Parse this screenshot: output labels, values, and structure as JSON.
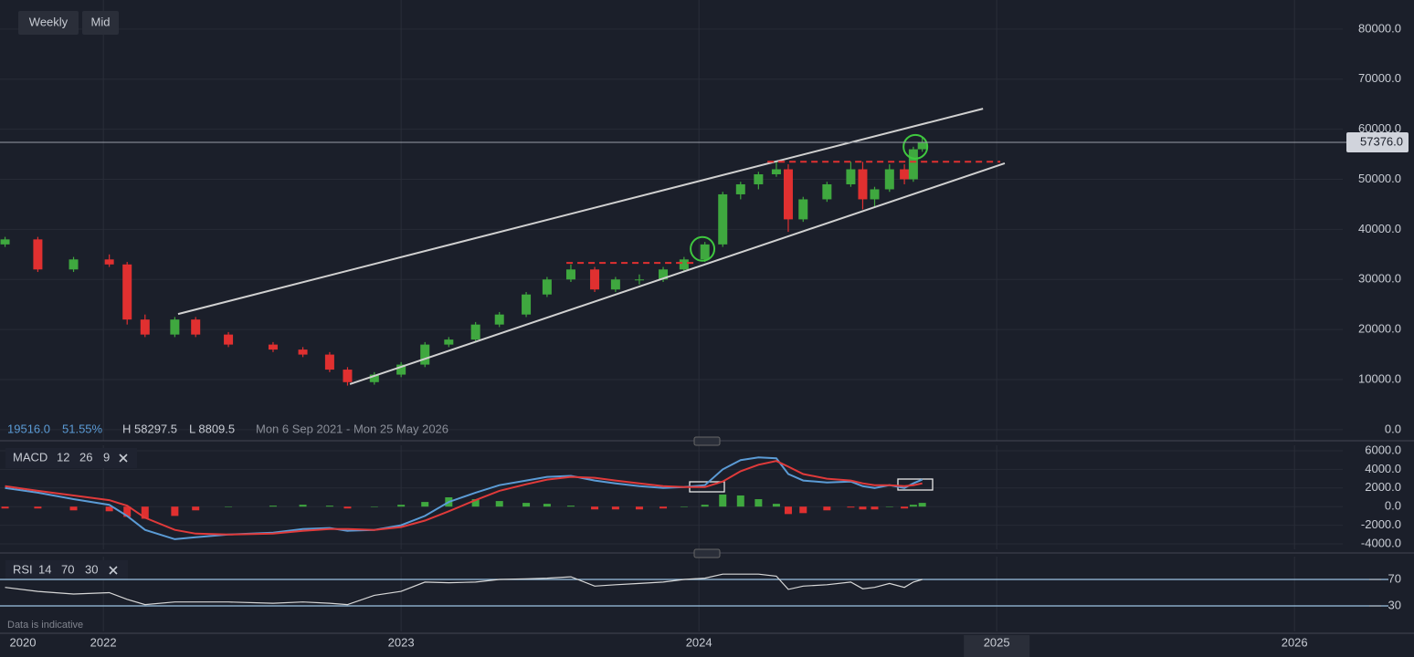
{
  "toolbar": {
    "interval": "Weekly",
    "price_type": "Mid"
  },
  "chart_data": [
    {
      "type": "candlestick",
      "up_color": "#3fa83f",
      "down_color": "#e03030",
      "x": [
        2021.67,
        2021.78,
        2021.9,
        2022.02,
        2022.08,
        2022.14,
        2022.24,
        2022.31,
        2022.42,
        2022.57,
        2022.67,
        2022.76,
        2022.82,
        2022.91,
        2023.0,
        2023.08,
        2023.16,
        2023.25,
        2023.33,
        2023.42,
        2023.49,
        2023.57,
        2023.65,
        2023.72,
        2023.8,
        2023.88,
        2023.95,
        2024.02,
        2024.08,
        2024.14,
        2024.2,
        2024.26,
        2024.3,
        2024.35,
        2024.43,
        2024.51,
        2024.55,
        2024.59,
        2024.64,
        2024.69,
        2024.72,
        2024.75
      ],
      "open": [
        37000,
        38000,
        32000,
        34000,
        33000,
        22000,
        19000,
        22000,
        19000,
        17000,
        16000,
        15000,
        12000,
        9500,
        11000,
        13000,
        17000,
        18000,
        21000,
        23000,
        27000,
        30000,
        32000,
        28000,
        30000,
        30000,
        32000,
        34000,
        37000,
        47000,
        49000,
        51000,
        52000,
        42000,
        46000,
        49000,
        52000,
        46000,
        48000,
        52000,
        50000,
        56000
      ],
      "high": [
        38500,
        38500,
        34500,
        35000,
        33500,
        23000,
        22500,
        22500,
        19500,
        17500,
        16500,
        15500,
        12500,
        11500,
        13500,
        17500,
        18500,
        21500,
        23500,
        27500,
        30500,
        33000,
        32500,
        30500,
        31000,
        32500,
        34500,
        37500,
        47500,
        49500,
        51500,
        53500,
        53000,
        46500,
        49500,
        53500,
        53500,
        48500,
        53000,
        53000,
        56500,
        58297.5
      ],
      "low": [
        36500,
        31500,
        31500,
        32500,
        21000,
        18500,
        18500,
        18500,
        16500,
        15500,
        14500,
        11500,
        8809.5,
        9000,
        10500,
        12500,
        16500,
        17500,
        20500,
        22500,
        26500,
        29500,
        27500,
        27500,
        29000,
        29500,
        31500,
        33500,
        36500,
        46000,
        48000,
        50500,
        39500,
        41500,
        45500,
        48500,
        44000,
        44500,
        47500,
        49000,
        49500,
        55500
      ],
      "close": [
        38000,
        32000,
        34000,
        33000,
        22000,
        19000,
        22000,
        19000,
        17000,
        16000,
        15000,
        12000,
        9500,
        11000,
        13000,
        17000,
        18000,
        21000,
        23000,
        27000,
        30000,
        32000,
        28000,
        30000,
        30000,
        32000,
        34000,
        37000,
        47000,
        49000,
        51000,
        52000,
        42000,
        46000,
        49000,
        52000,
        46000,
        48000,
        52000,
        50000,
        56000,
        57376
      ],
      "xlim": [
        2021.653,
        2026.162
      ],
      "xticks": [
        2022,
        2023,
        2024,
        2025,
        2026
      ],
      "x_start_label": "2020",
      "ylim": [
        -2200,
        85800
      ],
      "yticks": [
        {
          "value": 0,
          "label": "0.0"
        },
        {
          "value": 10000,
          "label": "10000.0"
        },
        {
          "value": 20000,
          "label": "20000.0"
        },
        {
          "value": 30000,
          "label": "30000.0"
        },
        {
          "value": 40000,
          "label": "40000.0"
        },
        {
          "value": 50000,
          "label": "50000.0"
        },
        {
          "value": 60000,
          "label": "60000.0"
        },
        {
          "value": 70000,
          "label": "70000.0"
        },
        {
          "value": 80000,
          "label": "80000.0"
        }
      ],
      "grid": true,
      "last_price": {
        "value": 57376,
        "label": "57376.0"
      },
      "info": {
        "change": "19516.0",
        "change_pct": "51.55%",
        "high": "H 58297.5",
        "low": "L 8809.5",
        "range": "Mon 6 Sep 2021 - Mon 25 May 2026"
      },
      "trend_lines": {
        "color": "#d0d0d0",
        "lines": [
          {
            "x": [
              2022.251,
              2024.954
            ],
            "y": [
              23100,
              64100
            ]
          },
          {
            "x": [
              2022.828,
              2025.027
            ],
            "y": [
              9100,
              53200
            ]
          }
        ]
      },
      "levels": {
        "color": "#e03030",
        "lines": [
          {
            "x": [
              2023.555,
              2023.984
            ],
            "value": 33300
          },
          {
            "x": [
              2024.23,
              2025.012
            ],
            "value": 53500
          }
        ]
      },
      "circles": {
        "color": "#3fc83f",
        "points": [
          {
            "x": 2024.012,
            "y": 36100
          },
          {
            "x": 2024.727,
            "y": 56500
          }
        ]
      },
      "footnote": "Data is indicative"
    },
    {
      "type": "macd",
      "title": "MACD",
      "params": [
        12,
        26,
        9
      ],
      "x": [
        2021.67,
        2021.78,
        2021.9,
        2022.02,
        2022.08,
        2022.14,
        2022.24,
        2022.31,
        2022.42,
        2022.57,
        2022.67,
        2022.76,
        2022.82,
        2022.91,
        2023.0,
        2023.08,
        2023.16,
        2023.25,
        2023.33,
        2023.42,
        2023.49,
        2023.57,
        2023.65,
        2023.72,
        2023.8,
        2023.88,
        2023.95,
        2024.02,
        2024.08,
        2024.14,
        2024.2,
        2024.26,
        2024.3,
        2024.35,
        2024.43,
        2024.51,
        2024.55,
        2024.59,
        2024.64,
        2024.69,
        2024.72,
        2024.75
      ],
      "xlim": [
        2021.653,
        2026.162
      ],
      "series": [
        {
          "color": "#5b9bd5",
          "values": [
            2000,
            1500,
            800,
            200,
            -1000,
            -2500,
            -3500,
            -3300,
            -3000,
            -2800,
            -2400,
            -2300,
            -2600,
            -2500,
            -2000,
            -1000,
            500,
            1500,
            2300,
            2800,
            3200,
            3300,
            2800,
            2500,
            2200,
            2000,
            2100,
            2300,
            4000,
            5000,
            5300,
            5200,
            3500,
            2800,
            2600,
            2700,
            2200,
            2000,
            2300,
            2000,
            2500,
            2900
          ]
        },
        {
          "color": "#e03a3a",
          "values": [
            2200,
            1700,
            1200,
            700,
            100,
            -1200,
            -2500,
            -2900,
            -3000,
            -2900,
            -2600,
            -2400,
            -2400,
            -2500,
            -2200,
            -1500,
            -500,
            700,
            1700,
            2400,
            2900,
            3200,
            3100,
            2800,
            2500,
            2200,
            2100,
            2100,
            2700,
            3800,
            4500,
            4900,
            4300,
            3500,
            3000,
            2800,
            2500,
            2300,
            2300,
            2200,
            2300,
            2500
          ]
        }
      ],
      "histogram": {
        "up_color": "#3fa83f",
        "down_color": "#e03030",
        "values": [
          -200,
          -200,
          -400,
          -500,
          -1100,
          -1300,
          -1000,
          -400,
          0,
          100,
          200,
          100,
          -200,
          0,
          200,
          500,
          1000,
          800,
          600,
          400,
          300,
          100,
          -300,
          -300,
          -300,
          -200,
          0,
          200,
          1300,
          1200,
          800,
          300,
          -800,
          -700,
          -400,
          -100,
          -300,
          -300,
          0,
          -200,
          200,
          400
        ]
      },
      "ylim": [
        -4590,
        6590
      ],
      "yticks": [
        {
          "value": 6000,
          "label": "6000.0"
        },
        {
          "value": 4000,
          "label": "4000.0"
        },
        {
          "value": 2000,
          "label": "2000.0"
        },
        {
          "value": 0,
          "label": "0.0"
        },
        {
          "value": -2000,
          "label": "-2000.0"
        },
        {
          "value": -4000,
          "label": "-4000.0"
        }
      ]
    },
    {
      "type": "rsi",
      "title": "RSI",
      "params": [
        14,
        70,
        30
      ],
      "x": [
        2021.67,
        2021.78,
        2021.9,
        2022.02,
        2022.08,
        2022.14,
        2022.24,
        2022.31,
        2022.42,
        2022.57,
        2022.67,
        2022.76,
        2022.82,
        2022.91,
        2023.0,
        2023.08,
        2023.16,
        2023.25,
        2023.33,
        2023.42,
        2023.49,
        2023.57,
        2023.65,
        2023.72,
        2023.8,
        2023.88,
        2023.95,
        2024.02,
        2024.08,
        2024.14,
        2024.2,
        2024.26,
        2024.3,
        2024.35,
        2024.43,
        2024.51,
        2024.55,
        2024.59,
        2024.64,
        2024.69,
        2024.72,
        2024.75
      ],
      "xlim": [
        2021.653,
        2026.162
      ],
      "color": "#d8d8d8",
      "level_color": "#9cc4e4",
      "values": [
        58,
        52,
        48,
        50,
        40,
        32,
        36,
        36,
        36,
        34,
        36,
        34,
        32,
        46,
        52,
        66,
        65,
        66,
        70,
        71,
        72,
        74,
        60,
        62,
        64,
        66,
        70,
        72,
        78,
        78,
        78,
        75,
        55,
        60,
        62,
        66,
        56,
        58,
        64,
        58,
        66,
        70
      ],
      "ylim": [
        -8.6,
        104.5
      ],
      "yticks": [
        70,
        30
      ]
    }
  ]
}
